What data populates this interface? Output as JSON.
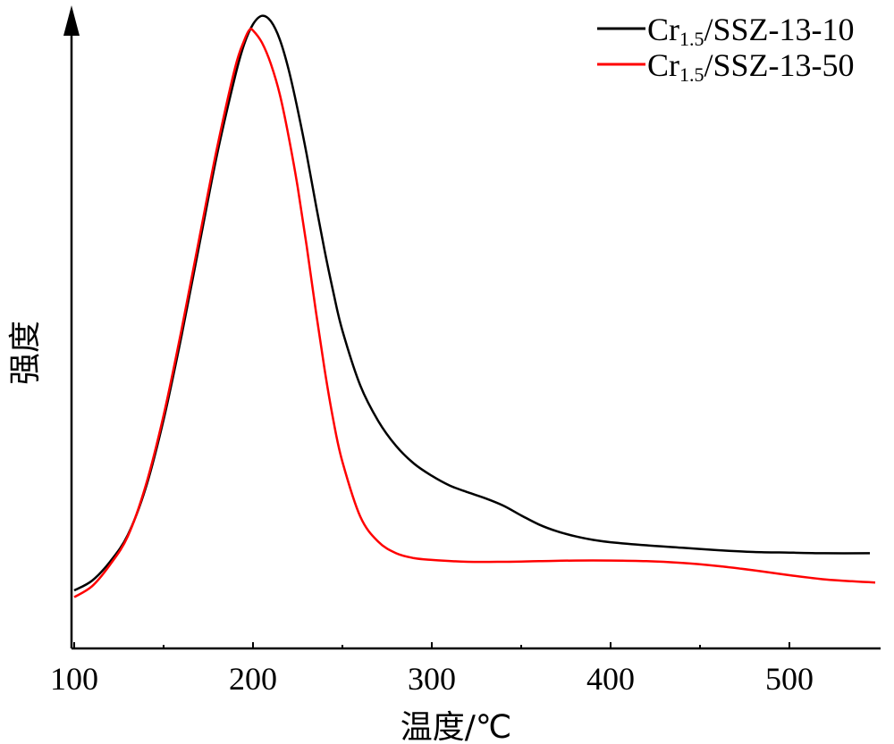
{
  "chart_data": {
    "type": "line",
    "xlabel": "温度/℃",
    "ylabel": "强度",
    "xlim": [
      100,
      550
    ],
    "ylim": [
      0,
      1
    ],
    "x_ticks": [
      100,
      200,
      300,
      400,
      500
    ],
    "x_tick_labels": [
      "100",
      "200",
      "300",
      "400",
      "500"
    ],
    "y_ticks_shown": false,
    "grid": false,
    "legend_position": "top-right",
    "series": [
      {
        "name": "Cr1.5/SSZ-13-10",
        "name_main": "Cr",
        "name_sub": "1.5",
        "name_rest": "/SSZ-13-10",
        "color": "#000000",
        "points": [
          [
            100,
            0.057
          ],
          [
            110,
            0.073
          ],
          [
            120,
            0.104
          ],
          [
            130,
            0.148
          ],
          [
            140,
            0.225
          ],
          [
            150,
            0.337
          ],
          [
            160,
            0.474
          ],
          [
            170,
            0.624
          ],
          [
            180,
            0.773
          ],
          [
            190,
            0.9
          ],
          [
            195,
            0.952
          ],
          [
            200,
            0.985
          ],
          [
            205,
            0.999
          ],
          [
            210,
            0.99
          ],
          [
            215,
            0.96
          ],
          [
            220,
            0.91
          ],
          [
            225,
            0.845
          ],
          [
            230,
            0.772
          ],
          [
            235,
            0.692
          ],
          [
            240,
            0.615
          ],
          [
            245,
            0.545
          ],
          [
            250,
            0.483
          ],
          [
            260,
            0.393
          ],
          [
            270,
            0.335
          ],
          [
            280,
            0.294
          ],
          [
            290,
            0.265
          ],
          [
            300,
            0.245
          ],
          [
            310,
            0.229
          ],
          [
            320,
            0.218
          ],
          [
            330,
            0.208
          ],
          [
            340,
            0.196
          ],
          [
            350,
            0.18
          ],
          [
            360,
            0.165
          ],
          [
            370,
            0.154
          ],
          [
            380,
            0.146
          ],
          [
            390,
            0.14
          ],
          [
            400,
            0.136
          ],
          [
            420,
            0.131
          ],
          [
            440,
            0.127
          ],
          [
            460,
            0.123
          ],
          [
            480,
            0.12
          ],
          [
            500,
            0.119
          ],
          [
            520,
            0.118
          ],
          [
            545,
            0.118
          ]
        ]
      },
      {
        "name": "Cr1.5/SSZ-13-50",
        "name_main": "Cr",
        "name_sub": "1.5",
        "name_rest": "/SSZ-13-50",
        "color": "#ff0000",
        "points": [
          [
            100,
            0.046
          ],
          [
            110,
            0.064
          ],
          [
            120,
            0.099
          ],
          [
            130,
            0.146
          ],
          [
            140,
            0.229
          ],
          [
            150,
            0.344
          ],
          [
            160,
            0.484
          ],
          [
            170,
            0.635
          ],
          [
            180,
            0.784
          ],
          [
            190,
            0.914
          ],
          [
            195,
            0.958
          ],
          [
            198,
            0.976
          ],
          [
            200,
            0.975
          ],
          [
            205,
            0.955
          ],
          [
            210,
            0.92
          ],
          [
            215,
            0.87
          ],
          [
            220,
            0.8
          ],
          [
            225,
            0.718
          ],
          [
            230,
            0.622
          ],
          [
            235,
            0.518
          ],
          [
            240,
            0.42
          ],
          [
            245,
            0.335
          ],
          [
            250,
            0.268
          ],
          [
            260,
            0.178
          ],
          [
            270,
            0.137
          ],
          [
            280,
            0.118
          ],
          [
            290,
            0.11
          ],
          [
            300,
            0.107
          ],
          [
            320,
            0.104
          ],
          [
            340,
            0.104
          ],
          [
            360,
            0.105
          ],
          [
            380,
            0.106
          ],
          [
            400,
            0.106
          ],
          [
            420,
            0.105
          ],
          [
            440,
            0.102
          ],
          [
            460,
            0.097
          ],
          [
            480,
            0.09
          ],
          [
            500,
            0.082
          ],
          [
            520,
            0.075
          ],
          [
            535,
            0.072
          ],
          [
            548,
            0.07
          ]
        ]
      }
    ]
  }
}
